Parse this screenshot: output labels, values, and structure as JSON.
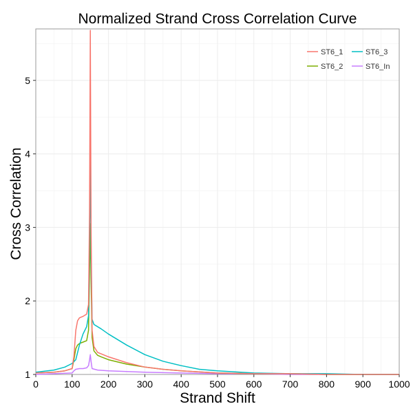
{
  "chart_data": {
    "type": "line",
    "title": "Normalized Strand Cross Correlation Curve",
    "xlabel": "Strand Shift",
    "ylabel": "Cross Correlation",
    "xlim": [
      0,
      1000
    ],
    "ylim": [
      1,
      5.7
    ],
    "xticks": [
      0,
      100,
      200,
      300,
      400,
      500,
      600,
      700,
      800,
      900,
      1000
    ],
    "yticks": [
      1,
      2,
      3,
      4,
      5
    ],
    "grid": true,
    "legend": {
      "placement": "top-right",
      "columns": 2
    },
    "series": [
      {
        "name": "ST6_1",
        "color": "#F8766D",
        "points": [
          [
            0,
            1.02
          ],
          [
            50,
            1.03
          ],
          [
            80,
            1.05
          ],
          [
            100,
            1.08
          ],
          [
            105,
            1.25
          ],
          [
            110,
            1.6
          ],
          [
            115,
            1.73
          ],
          [
            120,
            1.77
          ],
          [
            130,
            1.79
          ],
          [
            140,
            1.82
          ],
          [
            145,
            1.95
          ],
          [
            148,
            3.2
          ],
          [
            150,
            5.68
          ],
          [
            152,
            3.0
          ],
          [
            155,
            1.6
          ],
          [
            160,
            1.38
          ],
          [
            170,
            1.3
          ],
          [
            180,
            1.28
          ],
          [
            200,
            1.24
          ],
          [
            250,
            1.16
          ],
          [
            300,
            1.1
          ],
          [
            350,
            1.07
          ],
          [
            400,
            1.05
          ],
          [
            500,
            1.02
          ],
          [
            600,
            1.01
          ],
          [
            700,
            1.01
          ],
          [
            800,
            1.0
          ],
          [
            900,
            1.0
          ],
          [
            1000,
            1.0
          ]
        ]
      },
      {
        "name": "ST6_2",
        "color": "#7CAE00",
        "points": [
          [
            0,
            1.02
          ],
          [
            50,
            1.03
          ],
          [
            80,
            1.05
          ],
          [
            100,
            1.08
          ],
          [
            105,
            1.2
          ],
          [
            110,
            1.35
          ],
          [
            115,
            1.4
          ],
          [
            120,
            1.42
          ],
          [
            130,
            1.44
          ],
          [
            140,
            1.46
          ],
          [
            145,
            1.6
          ],
          [
            148,
            2.4
          ],
          [
            150,
            3.05
          ],
          [
            152,
            2.3
          ],
          [
            155,
            1.5
          ],
          [
            160,
            1.32
          ],
          [
            170,
            1.26
          ],
          [
            180,
            1.24
          ],
          [
            200,
            1.2
          ],
          [
            250,
            1.14
          ],
          [
            300,
            1.1
          ],
          [
            350,
            1.07
          ],
          [
            400,
            1.05
          ],
          [
            500,
            1.02
          ],
          [
            600,
            1.01
          ],
          [
            700,
            1.01
          ],
          [
            800,
            1.0
          ],
          [
            900,
            1.0
          ],
          [
            1000,
            1.0
          ]
        ]
      },
      {
        "name": "ST6_3",
        "color": "#00BFC4",
        "points": [
          [
            0,
            1.03
          ],
          [
            50,
            1.06
          ],
          [
            80,
            1.1
          ],
          [
            100,
            1.15
          ],
          [
            110,
            1.2
          ],
          [
            120,
            1.4
          ],
          [
            130,
            1.55
          ],
          [
            140,
            1.65
          ],
          [
            145,
            1.8
          ],
          [
            148,
            2.9
          ],
          [
            150,
            3.97
          ],
          [
            152,
            2.6
          ],
          [
            155,
            1.75
          ],
          [
            160,
            1.68
          ],
          [
            180,
            1.62
          ],
          [
            200,
            1.55
          ],
          [
            250,
            1.4
          ],
          [
            300,
            1.27
          ],
          [
            350,
            1.18
          ],
          [
            400,
            1.12
          ],
          [
            450,
            1.07
          ],
          [
            500,
            1.05
          ],
          [
            600,
            1.02
          ],
          [
            700,
            1.01
          ],
          [
            800,
            1.01
          ],
          [
            900,
            1.0
          ],
          [
            1000,
            1.0
          ]
        ]
      },
      {
        "name": "ST6_In",
        "color": "#C77CFF",
        "points": [
          [
            0,
            1.0
          ],
          [
            50,
            1.01
          ],
          [
            100,
            1.02
          ],
          [
            105,
            1.05
          ],
          [
            110,
            1.07
          ],
          [
            120,
            1.08
          ],
          [
            130,
            1.08
          ],
          [
            140,
            1.09
          ],
          [
            145,
            1.12
          ],
          [
            148,
            1.2
          ],
          [
            150,
            1.27
          ],
          [
            152,
            1.18
          ],
          [
            155,
            1.08
          ],
          [
            170,
            1.06
          ],
          [
            200,
            1.05
          ],
          [
            250,
            1.04
          ],
          [
            300,
            1.03
          ],
          [
            400,
            1.02
          ],
          [
            500,
            1.01
          ],
          [
            600,
            1.01
          ],
          [
            700,
            1.0
          ],
          [
            800,
            1.0
          ],
          [
            900,
            1.0
          ],
          [
            1000,
            1.0
          ]
        ]
      }
    ]
  }
}
